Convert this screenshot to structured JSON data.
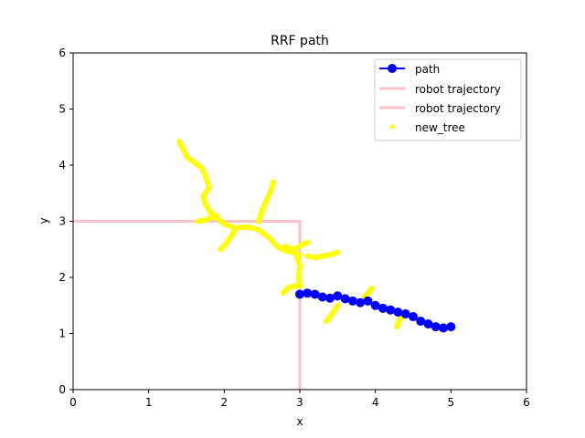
{
  "chart_data": {
    "type": "scatter",
    "title": "RRF path",
    "xlabel": "x",
    "ylabel": "y",
    "xlim": [
      0,
      6
    ],
    "ylim": [
      0,
      6
    ],
    "xticks": [
      0,
      1,
      2,
      3,
      4,
      5,
      6
    ],
    "yticks": [
      0,
      1,
      2,
      3,
      4,
      5,
      6
    ],
    "grid": false,
    "legend_position": "top-right",
    "series": [
      {
        "name": "path",
        "kind": "line-marker",
        "color": "#0000ff",
        "x": [
          3.0,
          3.1,
          3.2,
          3.3,
          3.4,
          3.5,
          3.6,
          3.7,
          3.8,
          3.9,
          4.0,
          4.1,
          4.2,
          4.3,
          4.4,
          4.5,
          4.6,
          4.7,
          4.8,
          4.9,
          5.0
        ],
        "y": [
          1.7,
          1.72,
          1.7,
          1.65,
          1.63,
          1.67,
          1.62,
          1.58,
          1.55,
          1.58,
          1.5,
          1.45,
          1.42,
          1.38,
          1.35,
          1.3,
          1.22,
          1.17,
          1.12,
          1.1,
          1.12
        ]
      },
      {
        "name": "robot trajectory",
        "kind": "line",
        "color": "#ffc0cb",
        "x": [
          0.0,
          3.0,
          3.0
        ],
        "y": [
          3.0,
          3.0,
          0.0
        ]
      },
      {
        "name": "robot trajectory",
        "kind": "line",
        "color": "#ffc0cb",
        "x": [],
        "y": []
      },
      {
        "name": "new_tree",
        "kind": "scatter",
        "color": "#ffff00",
        "branches": [
          {
            "x": [
              1.4,
              1.45,
              1.5,
              1.6,
              1.7,
              1.75,
              1.8,
              1.72,
              1.75,
              1.82,
              1.85,
              1.9,
              2.0,
              2.15,
              2.3,
              2.45,
              2.6,
              2.7,
              2.8,
              2.9,
              3.0
            ],
            "y": [
              4.42,
              4.3,
              4.15,
              4.05,
              3.95,
              3.8,
              3.6,
              3.45,
              3.3,
              3.15,
              3.1,
              3.05,
              2.95,
              2.88,
              2.9,
              2.85,
              2.7,
              2.55,
              2.48,
              2.45,
              2.4
            ]
          },
          {
            "x": [
              1.95,
              2.02,
              2.1,
              2.15
            ],
            "y": [
              2.5,
              2.6,
              2.75,
              2.88
            ]
          },
          {
            "x": [
              2.65,
              2.6,
              2.55,
              2.5,
              2.48,
              2.45
            ],
            "y": [
              3.7,
              3.5,
              3.35,
              3.2,
              3.1,
              3.0
            ]
          },
          {
            "x": [
              1.65,
              1.75,
              1.8,
              1.9
            ],
            "y": [
              3.0,
              3.02,
              3.05,
              3.1
            ]
          },
          {
            "x": [
              2.8,
              2.85,
              2.92,
              3.05,
              3.1
            ],
            "y": [
              2.55,
              2.52,
              2.5,
              2.6,
              2.62
            ]
          },
          {
            "x": [
              2.95,
              3.0,
              2.98,
              3.0
            ],
            "y": [
              2.4,
              2.2,
              2.0,
              1.85
            ]
          },
          {
            "x": [
              2.78,
              2.85,
              2.95
            ],
            "y": [
              1.72,
              1.82,
              1.85
            ]
          },
          {
            "x": [
              3.1,
              3.2,
              3.3,
              3.4,
              3.5
            ],
            "y": [
              2.38,
              2.35,
              2.38,
              2.4,
              2.45
            ]
          },
          {
            "x": [
              3.35,
              3.4,
              3.45,
              3.5
            ],
            "y": [
              1.22,
              1.3,
              1.4,
              1.5
            ]
          },
          {
            "x": [
              3.85,
              3.9,
              3.95
            ],
            "y": [
              1.65,
              1.72,
              1.8
            ]
          },
          {
            "x": [
              4.28,
              4.3,
              4.32,
              4.35
            ],
            "y": [
              1.12,
              1.18,
              1.25,
              1.3
            ]
          }
        ]
      }
    ]
  }
}
